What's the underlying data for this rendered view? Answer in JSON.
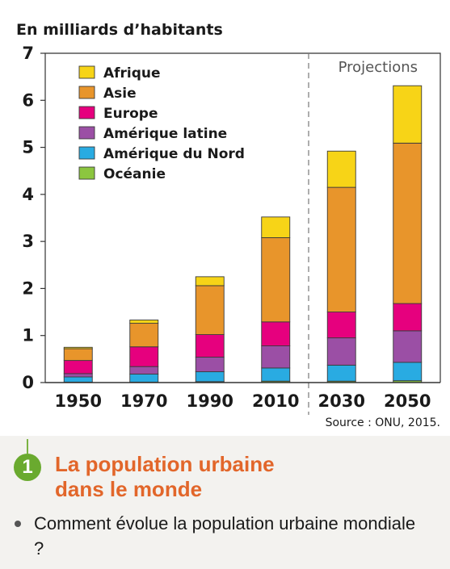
{
  "chart_data": {
    "type": "bar",
    "stacked": true,
    "unit_label": "En milliards d’habitants",
    "categories": [
      "1950",
      "1970",
      "1990",
      "2010",
      "2030",
      "2050"
    ],
    "ylim": [
      0,
      7
    ],
    "yticks": [
      0,
      1,
      2,
      3,
      4,
      5,
      6,
      7
    ],
    "projection_label": "Projections",
    "projection_start": "2030",
    "legend_position": "top-left",
    "grid": false,
    "series": [
      {
        "name": "Océanie",
        "color": "#8cc63f",
        "values": [
          0.01,
          0.01,
          0.02,
          0.03,
          0.03,
          0.04
        ]
      },
      {
        "name": "Amérique du Nord",
        "color": "#29abe2",
        "values": [
          0.11,
          0.17,
          0.21,
          0.28,
          0.34,
          0.39
        ]
      },
      {
        "name": "Amérique latine",
        "color": "#9b4fa5",
        "values": [
          0.07,
          0.16,
          0.31,
          0.47,
          0.58,
          0.67
        ]
      },
      {
        "name": "Europe",
        "color": "#e6007e",
        "values": [
          0.28,
          0.42,
          0.48,
          0.51,
          0.55,
          0.58
        ]
      },
      {
        "name": "Asie",
        "color": "#e8952b",
        "values": [
          0.25,
          0.5,
          1.04,
          1.79,
          2.65,
          3.41
        ]
      },
      {
        "name": "Afrique",
        "color": "#f7d417",
        "values": [
          0.03,
          0.07,
          0.19,
          0.44,
          0.77,
          1.22
        ]
      }
    ],
    "legend_order": [
      "Afrique",
      "Asie",
      "Europe",
      "Amérique latine",
      "Amérique du Nord",
      "Océanie"
    ],
    "source": "Source : ONU, 2015."
  },
  "caption": {
    "number": "1",
    "title": "La population urbaine dans le monde",
    "question": "Comment évolue la population urbaine mondiale ?"
  }
}
